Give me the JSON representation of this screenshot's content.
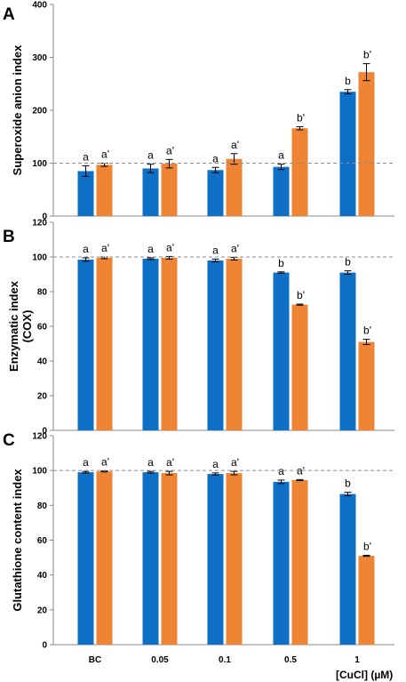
{
  "x_axis_title": "[CuCl] (µM)",
  "colors": {
    "series_1": "#0e6fc6",
    "series_2": "#ee8434",
    "reference_line": "#8c8c8c",
    "axis": "#8a8a8a",
    "errorbar": "#000000"
  },
  "chart_data": [
    {
      "type": "bar",
      "panel": "A",
      "ylabel": "Superoxide anion index",
      "categories": [
        "BC",
        "0.05",
        "0.1",
        "0.5",
        "1"
      ],
      "ylim": [
        0,
        400
      ],
      "yticks": [
        0,
        100,
        200,
        300,
        400
      ],
      "reference_line": 100,
      "series": [
        {
          "values": [
            85,
            90,
            87,
            93,
            235
          ],
          "errors": [
            10,
            8,
            5,
            5,
            4
          ],
          "labels": [
            "a",
            "a",
            "a",
            "a",
            "b"
          ]
        },
        {
          "values": [
            97,
            99,
            108,
            166,
            272
          ],
          "errors": [
            3,
            8,
            10,
            3,
            16
          ],
          "labels": [
            "a'",
            "a'",
            "a'",
            "b'",
            "b'"
          ]
        }
      ]
    },
    {
      "type": "bar",
      "panel": "B",
      "ylabel": "Enzymatic index (COX)",
      "ylabel_lines": [
        "Enzymatic index",
        "(COX)"
      ],
      "categories": [
        "BC",
        "0.05",
        "0.1",
        "0.5",
        "1"
      ],
      "ylim": [
        0,
        120
      ],
      "yticks": [
        0,
        20,
        40,
        60,
        80,
        100,
        120
      ],
      "reference_line": 100,
      "series": [
        {
          "values": [
            98.5,
            99,
            98,
            91,
            91
          ],
          "errors": [
            1,
            0.5,
            0.8,
            0.4,
            1
          ],
          "labels": [
            "a",
            "a",
            "a",
            "b",
            "b"
          ]
        },
        {
          "values": [
            99.5,
            99.5,
            99,
            72.5,
            51
          ],
          "errors": [
            0.5,
            0.8,
            0.8,
            0.3,
            1.5
          ],
          "labels": [
            "a'",
            "a'",
            "a'",
            "b'",
            "b'"
          ]
        }
      ]
    },
    {
      "type": "bar",
      "panel": "C",
      "ylabel": "Glutathione content index",
      "categories": [
        "BC",
        "0.05",
        "0.1",
        "0.5",
        "1"
      ],
      "ylim": [
        0,
        120
      ],
      "yticks": [
        0,
        20,
        40,
        60,
        80,
        100,
        120
      ],
      "reference_line": 100,
      "series": [
        {
          "values": [
            99,
            99,
            98,
            93.5,
            86.5
          ],
          "errors": [
            0.5,
            0.5,
            0.6,
            1,
            1
          ],
          "labels": [
            "a",
            "a",
            "a",
            "a",
            "b"
          ]
        },
        {
          "values": [
            99.5,
            98.5,
            98.5,
            94.5,
            51
          ],
          "errors": [
            0.3,
            1,
            1,
            0.3,
            0.3
          ],
          "labels": [
            "a'",
            "a'",
            "a'",
            "a'",
            "b'"
          ]
        }
      ]
    }
  ]
}
